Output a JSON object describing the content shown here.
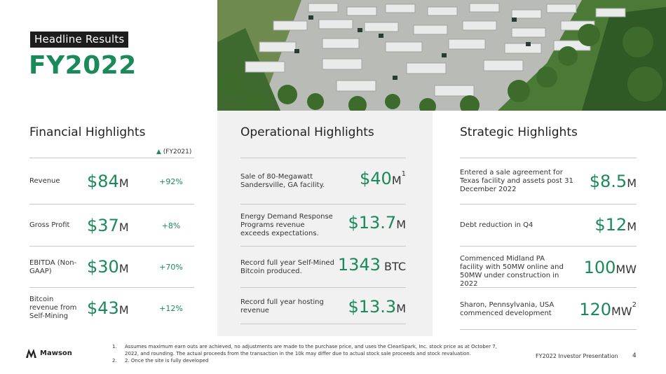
{
  "header": {
    "badge": "Headline Results",
    "title": "FY2022"
  },
  "financial": {
    "title": "Financial Highlights",
    "change_header_icon": "triangle-delta-icon",
    "change_header_text": "(FY2021)",
    "rows": [
      {
        "label": "Revenue",
        "value": "$84",
        "unit": "M",
        "change": "+92%"
      },
      {
        "label": "Gross Profit",
        "value": "$37",
        "unit": "M",
        "change": "+8%"
      },
      {
        "label": "EBITDA (Non-GAAP)",
        "value": "$30",
        "unit": "M",
        "change": "+70%"
      },
      {
        "label": "Bitcoin revenue from Self-Mining",
        "value": "$43",
        "unit": "M",
        "change": "+12%"
      }
    ]
  },
  "operational": {
    "title": "Operational Highlights",
    "rows": [
      {
        "label": "Sale of 80-Megawatt Sandersville, GA facility.",
        "value": "$40",
        "unit": "M",
        "sup": "1"
      },
      {
        "label": "Energy Demand Response Programs revenue exceeds expectations.",
        "value": "$13.7",
        "unit": "M",
        "sup": ""
      },
      {
        "label": "Record full year Self-Mined Bitcoin produced.",
        "value": "1343",
        "unit": " BTC",
        "sup": ""
      },
      {
        "label": "Record full year hosting revenue",
        "value": "$13.3",
        "unit": "M",
        "sup": ""
      }
    ]
  },
  "strategic": {
    "title": "Strategic Highlights",
    "rows": [
      {
        "label": "Entered a sale agreement for Texas facility and assets post 31 December 2022",
        "value": "$8.5",
        "unit": "M",
        "sup": ""
      },
      {
        "label": "Debt reduction in Q4",
        "value": "$12",
        "unit": "M",
        "sup": ""
      },
      {
        "label": "Commenced Midland PA facility with 50MW online and 50MW under construction in 2022",
        "value": "100",
        "unit": "MW",
        "sup": ""
      },
      {
        "label": "Sharon, Pennsylvania, USA commenced development",
        "value": "120",
        "unit": "MW",
        "sup": "2"
      }
    ]
  },
  "footer": {
    "logo_text": "Mawson",
    "notes": [
      {
        "num": "1.",
        "text": "Assumes maximum earn outs are achieved, no adjustments are made to the purchase price, and uses the CleanSpark, Inc. stock price as at October 7, 2022, and rounding. The actual proceeds from the transaction in the 10k may differ due to actual stock sale proceeds and stock revaluation."
      },
      {
        "num": "2.",
        "text": "2. Once the site is fully developed"
      }
    ],
    "presentation": "FY2022 Investor Presentation",
    "page_number": "4"
  }
}
